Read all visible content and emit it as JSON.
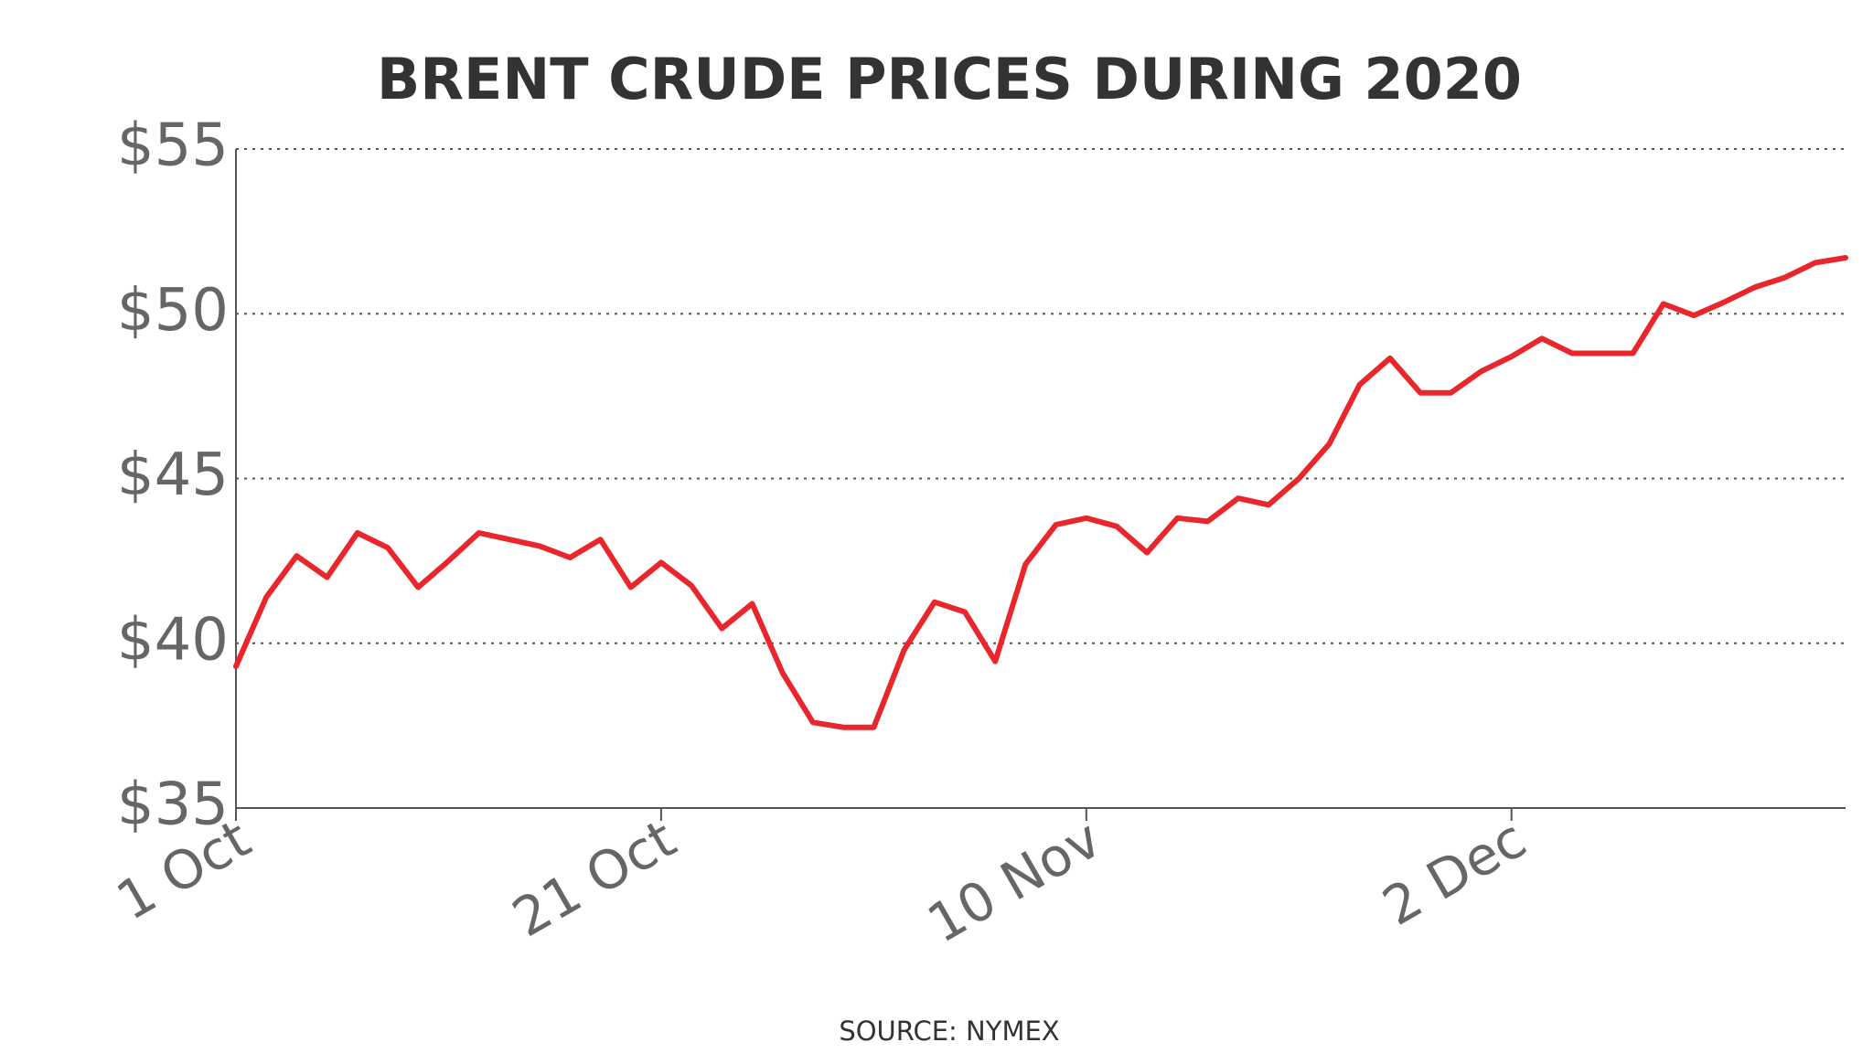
{
  "chart_data": {
    "type": "line",
    "title": "BRENT CRUDE PRICES DURING 2020",
    "source": "SOURCE: NYMEX",
    "categories": [
      "1 Oct",
      null,
      null,
      null,
      null,
      null,
      null,
      null,
      null,
      null,
      null,
      null,
      null,
      null,
      "21 Oct",
      null,
      null,
      null,
      null,
      null,
      null,
      null,
      null,
      null,
      null,
      null,
      null,
      null,
      "10 Nov",
      null,
      null,
      null,
      null,
      null,
      null,
      null,
      null,
      null,
      null,
      null,
      null,
      null,
      "2 Dec",
      null,
      null,
      null,
      null,
      null,
      null,
      null,
      null,
      null,
      null,
      null
    ],
    "series": [
      {
        "name": "Brent crude",
        "color": "#e8262b",
        "values": [
          39.3,
          41.4,
          42.65,
          42.0,
          43.35,
          42.9,
          41.7,
          42.5,
          43.35,
          43.15,
          42.95,
          42.6,
          43.15,
          41.7,
          42.45,
          41.75,
          40.45,
          41.2,
          39.1,
          37.6,
          37.45,
          37.45,
          39.8,
          41.25,
          40.95,
          39.45,
          42.4,
          43.6,
          43.8,
          43.55,
          42.75,
          43.8,
          43.7,
          44.4,
          44.2,
          45.0,
          46.05,
          47.85,
          48.65,
          47.6,
          47.6,
          48.25,
          48.7,
          49.25,
          48.8,
          48.8,
          48.8,
          50.3,
          49.95,
          50.35,
          50.8,
          51.1,
          51.55,
          51.7
        ]
      }
    ],
    "ylim": [
      35,
      55
    ],
    "yticks": [
      {
        "value": 35,
        "label": "$35"
      },
      {
        "value": 40,
        "label": "$40"
      },
      {
        "value": 45,
        "label": "$45"
      },
      {
        "value": 50,
        "label": "$50"
      },
      {
        "value": 55,
        "label": "$55"
      }
    ],
    "grid": true
  }
}
